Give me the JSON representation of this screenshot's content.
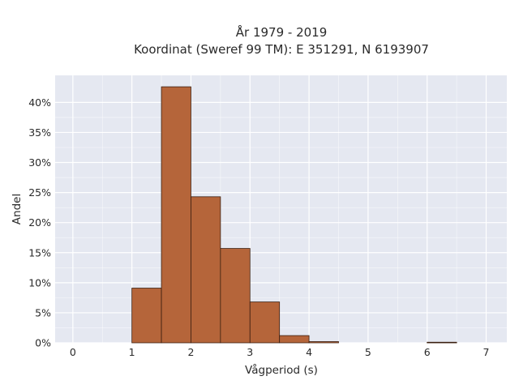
{
  "chart_data": {
    "type": "bar",
    "title": "År 1979 - 2019",
    "subtitle": "Koordinat (Sweref 99 TM): E 351291, N 6193907",
    "xlabel": "Vågperiod (s)",
    "ylabel": "Andel",
    "xlim": [
      -0.3,
      7.35
    ],
    "ylim": [
      0,
      44.5
    ],
    "x_ticks": [
      0,
      1,
      2,
      3,
      4,
      5,
      6,
      7
    ],
    "y_ticks": [
      0,
      5,
      10,
      15,
      20,
      25,
      30,
      35,
      40
    ],
    "y_tick_suffix": "%",
    "grid": true,
    "bin_width": 0.5,
    "bins": [
      {
        "start": 1.0,
        "value": 9.1
      },
      {
        "start": 1.5,
        "value": 42.6
      },
      {
        "start": 2.0,
        "value": 24.3
      },
      {
        "start": 2.5,
        "value": 15.7
      },
      {
        "start": 3.0,
        "value": 6.8
      },
      {
        "start": 3.5,
        "value": 1.2
      },
      {
        "start": 4.0,
        "value": 0.2
      },
      {
        "start": 6.0,
        "value": 0.1
      }
    ],
    "colors": {
      "bar_fill": "#b5653a",
      "bar_edge": "#3b1f10",
      "plot_bg": "#e5e8f1",
      "grid": "#ffffff"
    }
  }
}
